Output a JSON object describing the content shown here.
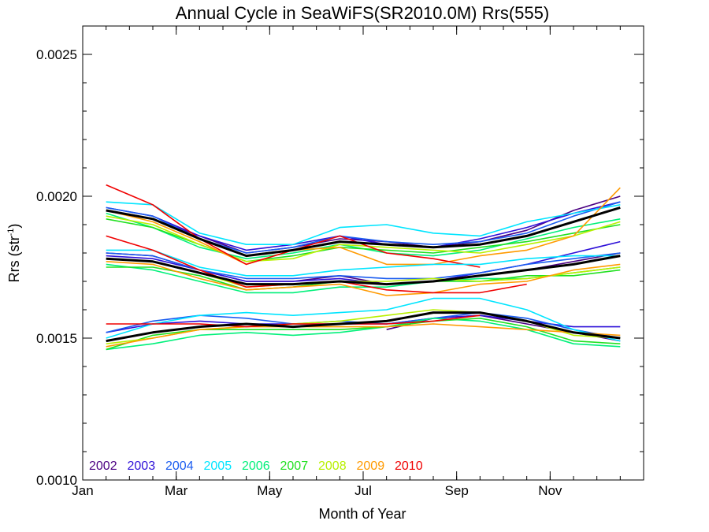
{
  "chart_data": {
    "type": "line",
    "title": "Annual Cycle in SeaWiFS(SR2010.0M) Rrs(555)",
    "xlabel": "Month of Year",
    "ylabel_main": "Rrs (str",
    "ylabel_sup": "-1",
    "ylabel_close": ")",
    "xlim": [
      0,
      12
    ],
    "ylim": [
      0.001,
      0.0026
    ],
    "x_ticks": [
      {
        "value": 0,
        "label": "Jan"
      },
      {
        "value": 2,
        "label": "Mar"
      },
      {
        "value": 4,
        "label": "May"
      },
      {
        "value": 6,
        "label": "Jul"
      },
      {
        "value": 8,
        "label": "Sep"
      },
      {
        "value": 10,
        "label": "Nov"
      }
    ],
    "y_ticks": [
      {
        "value": 0.001,
        "label": "0.0010"
      },
      {
        "value": 0.0015,
        "label": "0.0015"
      },
      {
        "value": 0.002,
        "label": "0.0020"
      },
      {
        "value": 0.0025,
        "label": "0.0025"
      }
    ],
    "y_minor_step": 0.0001,
    "x_minor_step": 0.5,
    "legend": [
      {
        "label": "2002",
        "color": "#4b0082"
      },
      {
        "label": "2003",
        "color": "#2e10d8"
      },
      {
        "label": "2004",
        "color": "#1a5cf0"
      },
      {
        "label": "2005",
        "color": "#00e5ff"
      },
      {
        "label": "2006",
        "color": "#00f07a"
      },
      {
        "label": "2007",
        "color": "#20e020"
      },
      {
        "label": "2008",
        "color": "#b8f000"
      },
      {
        "label": "2009",
        "color": "#ff9a00"
      },
      {
        "label": "2010",
        "color": "#f00000"
      }
    ],
    "x": [
      0.5,
      1.5,
      2.5,
      3.5,
      4.5,
      5.5,
      6.5,
      7.5,
      8.5,
      9.5,
      10.5,
      11.5
    ],
    "series": [
      {
        "group": "high",
        "color": "#4b0082",
        "values": [
          0.00195,
          0.00192,
          0.00186,
          0.0018,
          0.00182,
          0.00185,
          0.00184,
          0.00182,
          0.00184,
          0.00188,
          0.00195,
          0.002
        ]
      },
      {
        "group": "high",
        "color": "#2e10d8",
        "values": [
          0.00196,
          0.00193,
          0.00186,
          0.00181,
          0.00183,
          0.00186,
          0.00183,
          0.00182,
          0.00185,
          0.00189,
          0.00194,
          0.00198
        ]
      },
      {
        "group": "high",
        "color": "#1a5cf0",
        "values": [
          0.00196,
          0.00193,
          0.00185,
          0.0018,
          0.00182,
          0.00186,
          0.00184,
          0.00183,
          0.00184,
          0.00187,
          0.00193,
          0.00198
        ]
      },
      {
        "group": "high",
        "color": "#00e5ff",
        "values": [
          0.00198,
          0.00197,
          0.00187,
          0.00183,
          0.00183,
          0.00189,
          0.0019,
          0.00187,
          0.00186,
          0.00191,
          0.00194,
          0.00197
        ]
      },
      {
        "group": "high",
        "color": "#00f07a",
        "values": [
          0.00194,
          0.00189,
          0.00182,
          0.00178,
          0.0018,
          0.00183,
          0.0018,
          0.00179,
          0.00181,
          0.00185,
          0.00189,
          0.00192
        ]
      },
      {
        "group": "high",
        "color": "#20e020",
        "values": [
          0.00192,
          0.00189,
          0.00183,
          0.00177,
          0.00179,
          0.00182,
          0.00181,
          0.0018,
          0.00182,
          0.00184,
          0.00187,
          0.0019
        ]
      },
      {
        "group": "high",
        "color": "#b8f000",
        "values": [
          0.00193,
          0.0019,
          0.00183,
          0.00177,
          0.00178,
          0.00183,
          0.00182,
          0.00181,
          0.0018,
          0.00183,
          0.00186,
          0.00191
        ]
      },
      {
        "group": "high",
        "color": "#ff9a00",
        "values": [
          0.00195,
          0.00191,
          0.00184,
          0.00176,
          0.00181,
          0.00182,
          0.00176,
          0.00176,
          0.00179,
          0.00181,
          0.00186,
          0.00203
        ]
      },
      {
        "group": "high",
        "color": "#f00000",
        "values": [
          0.00204,
          0.00197,
          0.00185,
          0.00176,
          0.00181,
          0.00186,
          0.0018,
          0.00178,
          0.00175,
          null,
          null,
          null
        ]
      },
      {
        "group": "high",
        "color": "#000000",
        "bold": true,
        "values": [
          0.00195,
          0.00192,
          0.00185,
          0.00179,
          0.00181,
          0.00184,
          0.00183,
          0.00182,
          0.00183,
          0.00186,
          0.00191,
          0.00196
        ]
      },
      {
        "group": "mid",
        "color": "#4b0082",
        "values": [
          0.0018,
          0.00179,
          0.00174,
          0.0017,
          0.0017,
          0.00172,
          0.00169,
          0.0017,
          0.00172,
          0.00174,
          0.00177,
          0.0018
        ]
      },
      {
        "group": "mid",
        "color": "#2e10d8",
        "values": [
          0.00179,
          0.00178,
          0.00174,
          0.0017,
          0.0017,
          0.00171,
          0.00169,
          0.0017,
          0.00173,
          0.00176,
          0.0018,
          0.00184
        ]
      },
      {
        "group": "mid",
        "color": "#1a5cf0",
        "values": [
          0.0018,
          0.00179,
          0.00174,
          0.00171,
          0.00171,
          0.00172,
          0.00171,
          0.00171,
          0.00173,
          0.00176,
          0.00178,
          0.0018
        ]
      },
      {
        "group": "mid",
        "color": "#00e5ff",
        "values": [
          0.00181,
          0.00181,
          0.00175,
          0.00172,
          0.00172,
          0.00174,
          0.00175,
          0.00176,
          0.00176,
          0.00178,
          0.00179,
          0.00179
        ]
      },
      {
        "group": "mid",
        "color": "#00f07a",
        "values": [
          0.00176,
          0.00174,
          0.0017,
          0.00166,
          0.00166,
          0.00168,
          0.00168,
          0.0017,
          0.00171,
          0.00171,
          0.00173,
          0.00175
        ]
      },
      {
        "group": "mid",
        "color": "#20e020",
        "values": [
          0.00175,
          0.00175,
          0.00172,
          0.00167,
          0.00168,
          0.0017,
          0.00169,
          0.0017,
          0.0017,
          0.00172,
          0.00172,
          0.00174
        ]
      },
      {
        "group": "mid",
        "color": "#b8f000",
        "values": [
          0.00178,
          0.00177,
          0.00173,
          0.00168,
          0.00169,
          0.0017,
          0.0017,
          0.00171,
          0.0017,
          0.00171,
          0.00173,
          0.00175
        ]
      },
      {
        "group": "mid",
        "color": "#ff9a00",
        "values": [
          0.00177,
          0.00176,
          0.00171,
          0.00167,
          0.00168,
          0.00169,
          0.00165,
          0.00166,
          0.00169,
          0.0017,
          0.00174,
          0.00176
        ]
      },
      {
        "group": "mid",
        "color": "#f00000",
        "values": [
          0.00186,
          0.00181,
          0.00174,
          0.00168,
          0.00169,
          0.0017,
          0.00167,
          0.00166,
          0.00166,
          0.00169,
          null,
          null
        ]
      },
      {
        "group": "mid",
        "color": "#000000",
        "bold": true,
        "values": [
          0.00178,
          0.00177,
          0.00173,
          0.00169,
          0.00169,
          0.0017,
          0.00169,
          0.0017,
          0.00172,
          0.00174,
          0.00176,
          0.00179
        ]
      },
      {
        "group": "low",
        "color": "#4b0082",
        "values": [
          null,
          null,
          null,
          null,
          null,
          null,
          0.00153,
          0.00157,
          0.00158,
          0.00155,
          0.00152,
          0.00149
        ]
      },
      {
        "group": "low",
        "color": "#2e10d8",
        "values": [
          0.00152,
          0.00155,
          0.00156,
          0.00155,
          0.00155,
          0.00155,
          0.00155,
          0.00157,
          0.00158,
          0.00156,
          0.00154,
          0.00154
        ]
      },
      {
        "group": "low",
        "color": "#1a5cf0",
        "values": [
          0.00152,
          0.00156,
          0.00158,
          0.00157,
          0.00155,
          0.00156,
          0.00155,
          0.00157,
          0.00159,
          0.00157,
          0.00153,
          0.0015
        ]
      },
      {
        "group": "low",
        "color": "#00e5ff",
        "values": [
          0.0015,
          0.00155,
          0.00158,
          0.00159,
          0.00158,
          0.00159,
          0.0016,
          0.00164,
          0.00164,
          0.0016,
          0.00153,
          0.00149
        ]
      },
      {
        "group": "low",
        "color": "#00f07a",
        "values": [
          0.00146,
          0.00148,
          0.00151,
          0.00152,
          0.00151,
          0.00152,
          0.00154,
          0.00157,
          0.00156,
          0.00153,
          0.00148,
          0.00147
        ]
      },
      {
        "group": "low",
        "color": "#20e020",
        "values": [
          0.00146,
          0.00151,
          0.00153,
          0.00153,
          0.00153,
          0.00153,
          0.00154,
          0.00156,
          0.00157,
          0.00154,
          0.00149,
          0.00148
        ]
      },
      {
        "group": "low",
        "color": "#b8f000",
        "values": [
          0.00148,
          0.0015,
          0.00153,
          0.00154,
          0.00155,
          0.00156,
          0.00158,
          0.0016,
          0.00159,
          0.00156,
          0.00151,
          0.0015
        ]
      },
      {
        "group": "low",
        "color": "#ff9a00",
        "values": [
          0.00147,
          0.0015,
          0.00153,
          0.00154,
          0.00154,
          0.00154,
          0.00154,
          0.00155,
          0.00154,
          0.00153,
          0.00152,
          0.00151
        ]
      },
      {
        "group": "low",
        "color": "#f00000",
        "values": [
          0.00155,
          0.00155,
          0.00155,
          0.00154,
          0.00155,
          0.00155,
          0.00155,
          0.00156,
          0.00158,
          null,
          null,
          null
        ]
      },
      {
        "group": "low",
        "color": "#000000",
        "bold": true,
        "values": [
          0.00149,
          0.00152,
          0.00154,
          0.00155,
          0.00154,
          0.00155,
          0.00156,
          0.00159,
          0.00159,
          0.00156,
          0.00152,
          0.0015
        ]
      }
    ]
  }
}
